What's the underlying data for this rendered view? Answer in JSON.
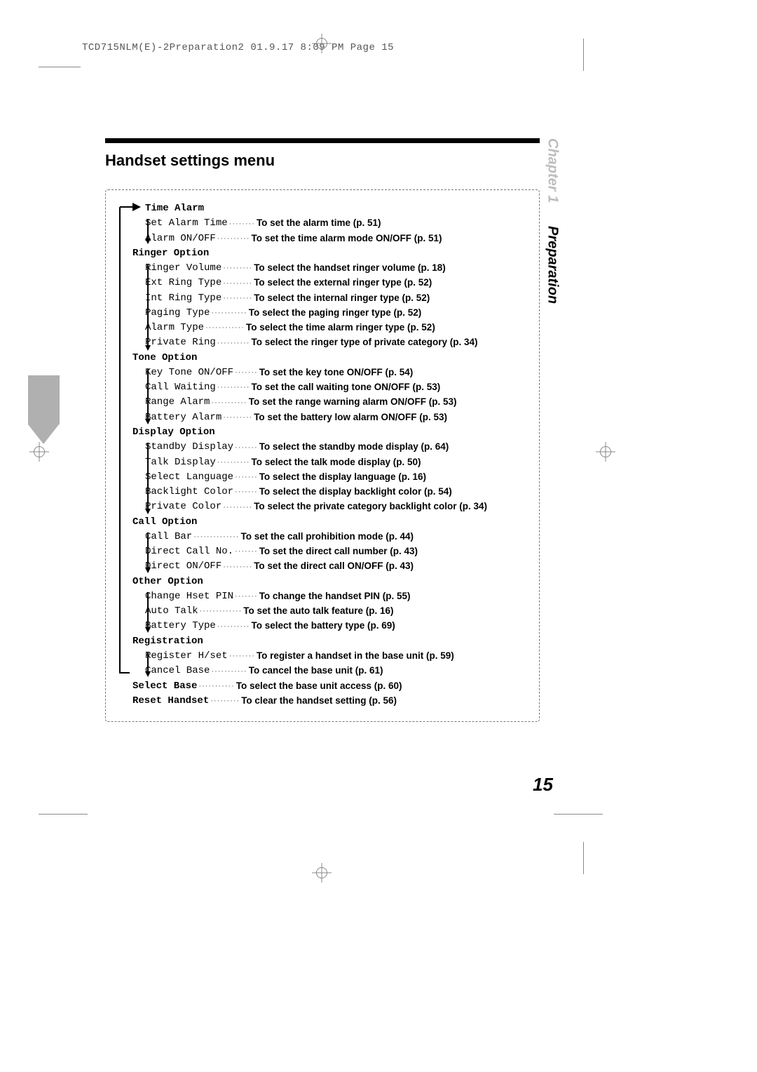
{
  "header": "TCD715NLM(E)-2Preparation2  01.9.17 8:09 PM  Page 15",
  "title": "Handset settings menu",
  "side": {
    "chapter": "Chapter 1",
    "section": "Preparation"
  },
  "page_number": "15",
  "sections": [
    {
      "head": "Time Alarm",
      "items": [
        {
          "label": "Set Alarm Time",
          "desc": "To set the alarm time (p. 51)"
        },
        {
          "label": "Alarm ON/OFF",
          "desc": "To set the time alarm mode ON/OFF (p. 51)"
        }
      ]
    },
    {
      "head": "Ringer Option",
      "items": [
        {
          "label": "Ringer Volume",
          "desc": "To select the handset ringer volume (p. 18)"
        },
        {
          "label": "Ext Ring Type",
          "desc": "To select the external ringer type (p. 52)"
        },
        {
          "label": "Int Ring Type",
          "desc": "To select the internal ringer type (p. 52)"
        },
        {
          "label": "Paging Type",
          "desc": "To select the paging ringer type (p. 52)"
        },
        {
          "label": "Alarm Type",
          "desc": "To select the time alarm ringer type (p. 52)"
        },
        {
          "label": "Private Ring",
          "desc": "To select the ringer type of private category (p. 34)"
        }
      ]
    },
    {
      "head": "Tone Option",
      "items": [
        {
          "label": "Key Tone ON/OFF",
          "desc": "To set the key tone ON/OFF (p. 54)"
        },
        {
          "label": "Call Waiting",
          "desc": "To set the call waiting tone ON/OFF (p. 53)"
        },
        {
          "label": "Range Alarm",
          "desc": "To set the range warning alarm ON/OFF (p. 53)"
        },
        {
          "label": "Battery Alarm",
          "desc": "To set the battery low alarm ON/OFF (p. 53)"
        }
      ]
    },
    {
      "head": "Display Option",
      "items": [
        {
          "label": "Standby Display",
          "desc": "To select the standby mode display (p. 64)"
        },
        {
          "label": "Talk Display",
          "desc": "To select the talk mode display (p. 50)"
        },
        {
          "label": "Select Language",
          "desc": "To select the display language (p. 16)"
        },
        {
          "label": "Backlight Color",
          "desc": "To select the display backlight color (p. 54)"
        },
        {
          "label": "Private Color",
          "desc": "To select the private category backlight color (p. 34)"
        }
      ]
    },
    {
      "head": "Call Option",
      "items": [
        {
          "label": "Call Bar",
          "desc": "To set the call prohibition mode (p. 44)"
        },
        {
          "label": "Direct Call No.",
          "desc": "To set the direct call number (p. 43)"
        },
        {
          "label": "Direct ON/OFF",
          "desc": "To set the direct call ON/OFF (p. 43)"
        }
      ]
    },
    {
      "head": "Other Option",
      "items": [
        {
          "label": "Change Hset PIN",
          "desc": "To change the handset PIN (p. 55)"
        },
        {
          "label": "Auto Talk",
          "desc": "To set the auto talk feature (p. 16)"
        },
        {
          "label": "Battery Type",
          "desc": "To select the battery type (p. 69)"
        }
      ]
    },
    {
      "head": "Registration",
      "items": [
        {
          "label": "Register H/set",
          "desc": "To register a handset in the base unit (p. 59)"
        },
        {
          "label": "Cancel Base",
          "desc": "To cancel the base unit (p. 61)"
        }
      ]
    }
  ],
  "tail": [
    {
      "label": "Select Base",
      "desc": "To select the base unit access (p. 60)"
    },
    {
      "label": "Reset Handset",
      "desc": "To clear the handset setting (p. 56)"
    }
  ],
  "style": {
    "dot_fill": "·················································"
  }
}
